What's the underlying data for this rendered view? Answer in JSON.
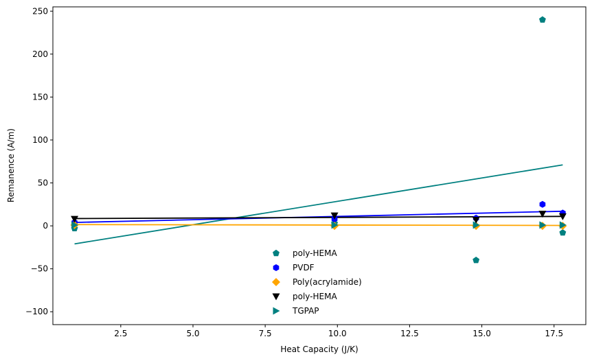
{
  "chart_data": {
    "type": "scatter",
    "title": "",
    "xlabel": "Heat Capacity (J/K)",
    "ylabel": "Remanence (A/m)",
    "xlim": [
      0.15,
      18.6
    ],
    "ylim": [
      -115,
      255
    ],
    "xticks": [
      2.5,
      5.0,
      7.5,
      10.0,
      12.5,
      15.0,
      17.5
    ],
    "xtick_labels": [
      "2.5",
      "5.0",
      "7.5",
      "10.0",
      "12.5",
      "15.0",
      "17.5"
    ],
    "yticks": [
      -100,
      -50,
      0,
      50,
      100,
      150,
      200,
      250
    ],
    "ytick_labels": [
      "−100",
      "−50",
      "0",
      "50",
      "100",
      "150",
      "200",
      "250"
    ],
    "grid": false,
    "legend_position": "bottom-center",
    "series": [
      {
        "name": "poly-HEMA",
        "color": "#008080",
        "marker": "pentagon",
        "x": [
          0.9,
          9.9,
          14.8,
          17.1,
          17.8
        ],
        "y": [
          -3,
          3,
          -40,
          240,
          -8
        ],
        "trend": [
          [
            0.9,
            -21
          ],
          [
            17.8,
            71
          ]
        ]
      },
      {
        "name": "PVDF",
        "color": "#0000ff",
        "marker": "hexagon",
        "x": [
          0.9,
          9.9,
          14.8,
          17.1,
          17.8
        ],
        "y": [
          4,
          8,
          9,
          25,
          15
        ],
        "trend": [
          [
            0.9,
            4
          ],
          [
            17.8,
            17
          ]
        ]
      },
      {
        "name": "Poly(acrylamide)",
        "color": "#ffa500",
        "marker": "diamond",
        "x": [
          0.9,
          9.9,
          14.8,
          17.1,
          17.8
        ],
        "y": [
          1,
          0,
          0,
          0,
          0
        ],
        "trend": [
          [
            0.9,
            1.5
          ],
          [
            17.8,
            0.5
          ]
        ]
      },
      {
        "name": "poly-HEMA",
        "color": "#000000",
        "marker": "triangle-down",
        "x": [
          0.9,
          9.9,
          14.8,
          17.1,
          17.8
        ],
        "y": [
          8,
          12,
          7,
          14,
          11
        ],
        "trend": [
          [
            0.9,
            8.5
          ],
          [
            17.8,
            11
          ]
        ]
      },
      {
        "name": "TGPAP",
        "color": "#008080",
        "marker": "triangle-right",
        "x": [
          0.9,
          9.9,
          14.8,
          17.1,
          17.8
        ],
        "y": [
          1,
          1,
          1,
          1,
          1
        ]
      }
    ]
  }
}
